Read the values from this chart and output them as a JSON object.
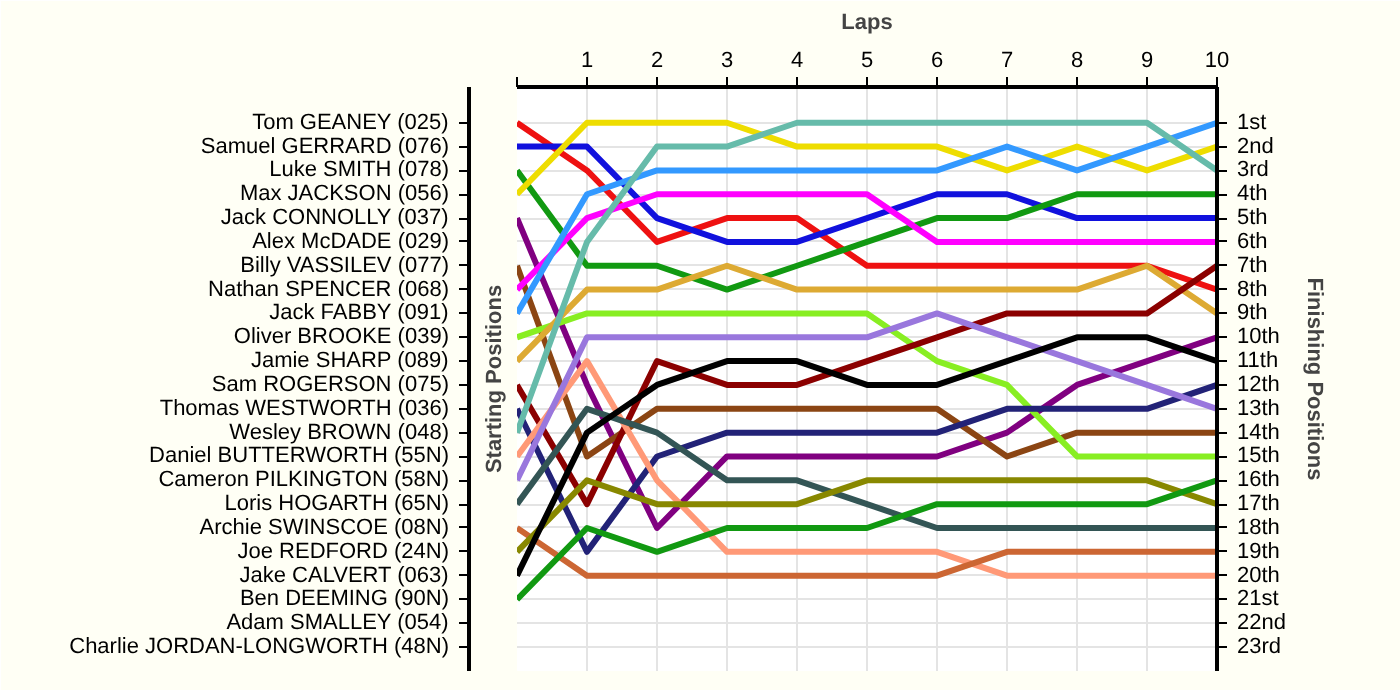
{
  "chart_data": {
    "type": "line",
    "xlabel": "Laps",
    "y2label": "Finishing Positions",
    "x": [
      0,
      1,
      2,
      3,
      4,
      5,
      6,
      7,
      8,
      9,
      10
    ],
    "xlim": [
      0,
      10
    ],
    "xticks": [
      {
        "value": 0,
        "label": null
      },
      1,
      2,
      3,
      4,
      5,
      6,
      7,
      8,
      9,
      10
    ],
    "annotations": [
      "Starting Positions",
      "Tom GEANEY (025)",
      "Samuel GERRARD (076)",
      "Luke SMITH (078)",
      "Max JACKSON (056)",
      "Jack CONNOLLY (037)",
      "Alex McDADE (029)",
      "Billy VASSILEV (077)",
      "Nathan SPENCER (068)",
      "Jack FABBY (091)",
      "Oliver BROOKE (039)",
      "Jamie SHARP (089)",
      "Sam ROGERSON (075)",
      "Thomas WESTWORTH (036)",
      "Wesley BROWN (048)",
      "Daniel BUTTERWORTH (55N)",
      "Cameron PILKINGTON (58N)",
      "Loris HOGARTH (65N)",
      "Archie SWINSCOE (08N)",
      "Joe REDFORD (24N)",
      "Jake CALVERT (063)",
      "Ben DEEMING (90N)",
      "Adam SMALLEY (054)",
      "Charlie JORDAN-LONGWORTH (48N)"
    ],
    "y2lim": [
      24,
      -0.5
    ],
    "y2ticks": [
      {
        "value": 1,
        "label": "1st"
      },
      {
        "value": 2,
        "label": "2nd"
      },
      {
        "value": 3,
        "label": "3rd"
      },
      {
        "value": 4,
        "label": "4th"
      },
      {
        "value": 5,
        "label": "5th"
      },
      {
        "value": 6,
        "label": "6th"
      },
      {
        "value": 7,
        "label": "7th"
      },
      {
        "value": 8,
        "label": "8th"
      },
      {
        "value": 9,
        "label": "9th"
      },
      {
        "value": 10,
        "label": "10th"
      },
      {
        "value": 11,
        "label": "11th"
      },
      {
        "value": 12,
        "label": "12th"
      },
      {
        "value": 13,
        "label": "13th"
      },
      {
        "value": 14,
        "label": "14th"
      },
      {
        "value": 15,
        "label": "15th"
      },
      {
        "value": 16,
        "label": "16th"
      },
      {
        "value": 17,
        "label": "17th"
      },
      {
        "value": 18,
        "label": "18th"
      },
      {
        "value": 19,
        "label": "19th"
      },
      {
        "value": 20,
        "label": "20th"
      },
      {
        "value": 21,
        "label": "21st"
      },
      {
        "value": 22,
        "label": "22nd"
      },
      {
        "value": 23,
        "label": "23rd"
      }
    ],
    "grid": true,
    "marker": "none",
    "line_style": "solid",
    "series": [
      {
        "axis": "y2",
        "color": "#ee1111",
        "values": [
          1,
          3,
          6,
          5,
          5,
          7,
          7,
          7,
          7,
          7,
          8
        ]
      },
      {
        "axis": "y2",
        "color": "#1111dd",
        "values": [
          2,
          2,
          5,
          6,
          6,
          5,
          4,
          4,
          5,
          5,
          5
        ]
      },
      {
        "axis": "y2",
        "color": "#119911",
        "values": [
          3,
          7,
          7,
          8,
          7,
          6,
          5,
          5,
          4,
          4,
          4
        ]
      },
      {
        "axis": "y2",
        "color": "#eedd00",
        "values": [
          4,
          1,
          1,
          1,
          2,
          2,
          2,
          3,
          2,
          3,
          2
        ]
      },
      {
        "axis": "y2",
        "color": "#800080",
        "values": [
          5,
          12,
          18,
          15,
          15,
          15,
          15,
          14,
          12,
          11,
          10
        ]
      },
      {
        "axis": "y2",
        "color": "#8b4513",
        "values": [
          7,
          15,
          13,
          13,
          13,
          13,
          13,
          15,
          14,
          14,
          14
        ]
      },
      {
        "axis": "y2",
        "color": "#ff00ff",
        "values": [
          8,
          5,
          4,
          4,
          4,
          4,
          6,
          6,
          6,
          6,
          6
        ]
      },
      {
        "axis": "y2",
        "color": "#3399ff",
        "values": [
          9,
          4,
          3,
          3,
          3,
          3,
          3,
          2,
          3,
          2,
          1
        ]
      },
      {
        "axis": "y2",
        "color": "#88ee22",
        "values": [
          10,
          9,
          9,
          9,
          9,
          9,
          11,
          12,
          15,
          15,
          15
        ]
      },
      {
        "axis": "y2",
        "color": "#ddaa33",
        "values": [
          11,
          8,
          8,
          7,
          8,
          8,
          8,
          8,
          8,
          7,
          9
        ]
      },
      {
        "axis": "y2",
        "color": "#8b0000",
        "values": [
          12,
          17,
          11,
          12,
          12,
          11,
          10,
          9,
          9,
          9,
          7
        ]
      },
      {
        "axis": "y2",
        "color": "#222277",
        "values": [
          13,
          19,
          15,
          14,
          14,
          14,
          14,
          13,
          13,
          13,
          12
        ]
      },
      {
        "axis": "y2",
        "color": "#66bbaa",
        "values": [
          14,
          6,
          2,
          2,
          1,
          1,
          1,
          1,
          1,
          1,
          3
        ]
      },
      {
        "axis": "y2",
        "color": "#ff9977",
        "values": [
          15,
          11,
          16,
          19,
          19,
          19,
          19,
          20,
          20,
          20,
          20
        ]
      },
      {
        "axis": "y2",
        "color": "#9977dd",
        "values": [
          16,
          10,
          10,
          10,
          10,
          10,
          9,
          10,
          11,
          12,
          13
        ]
      },
      {
        "axis": "y2",
        "color": "#335555",
        "values": [
          17,
          13,
          14,
          16,
          16,
          17,
          18,
          18,
          18,
          18,
          18
        ]
      },
      {
        "axis": "y2",
        "color": "#cc6633",
        "values": [
          18,
          20,
          20,
          20,
          20,
          20,
          20,
          19,
          19,
          19,
          19
        ]
      },
      {
        "axis": "y2",
        "color": "#888800",
        "values": [
          19,
          16,
          17,
          17,
          17,
          16,
          16,
          16,
          16,
          16,
          17
        ]
      },
      {
        "axis": "y2",
        "color": "#000000",
        "values": [
          20,
          14,
          12,
          11,
          11,
          12,
          12,
          11,
          10,
          10,
          11
        ]
      },
      {
        "axis": "y2",
        "color": "#119911",
        "values": [
          21,
          18,
          19,
          18,
          18,
          18,
          17,
          17,
          17,
          17,
          16
        ]
      }
    ]
  }
}
